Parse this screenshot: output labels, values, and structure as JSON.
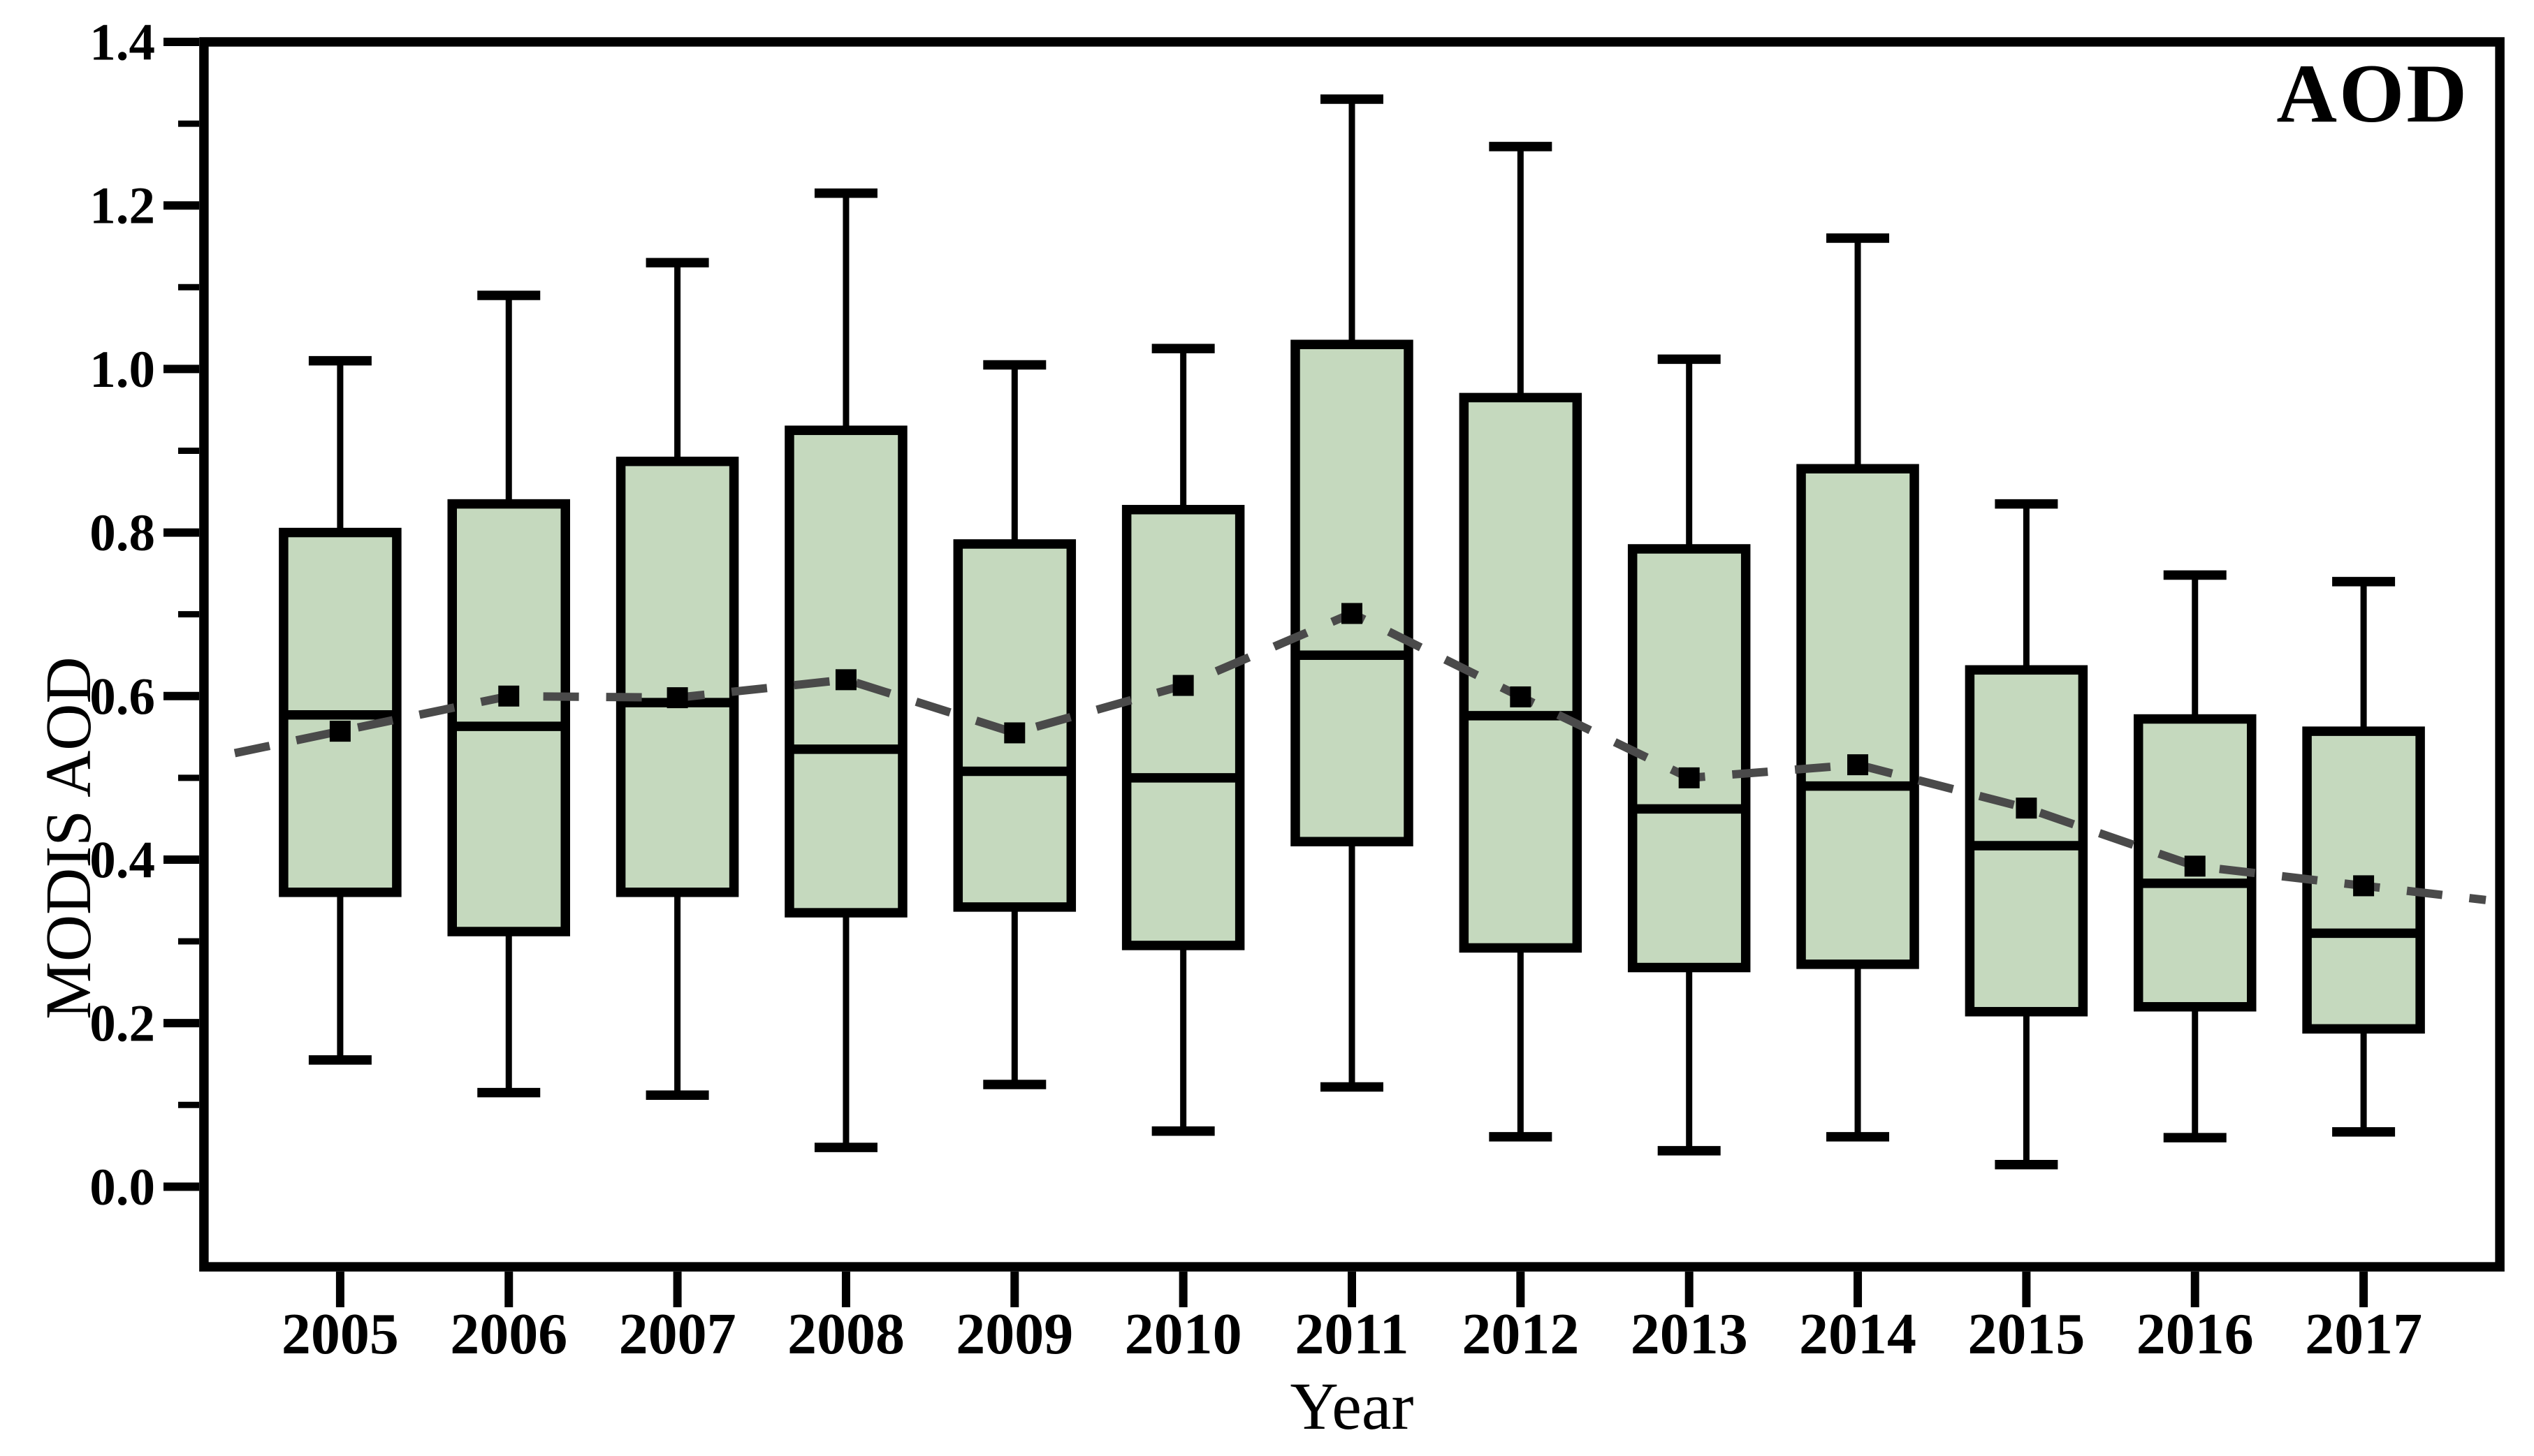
{
  "chart_data": {
    "type": "box",
    "title": "AOD",
    "xlabel": "Year",
    "ylabel": "MODIS AOD",
    "categories": [
      "2005",
      "2006",
      "2007",
      "2008",
      "2009",
      "2010",
      "2011",
      "2012",
      "2013",
      "2014",
      "2015",
      "2016",
      "2017"
    ],
    "y_axis": {
      "min": -0.098,
      "max": 1.4,
      "major_tick_labels": [
        "0.0",
        "0.2",
        "0.4",
        "0.6",
        "0.8",
        "1.0",
        "1.2",
        "1.4"
      ],
      "minor_ticks": [
        0.1,
        0.3,
        0.5,
        0.7,
        0.9,
        1.1,
        1.3
      ]
    },
    "grid": false,
    "legend_position": "none",
    "mean_trend_line": true,
    "series": [
      {
        "year": "2005",
        "whisker_low": 0.155,
        "q1": 0.36,
        "median": 0.577,
        "q3": 0.8,
        "whisker_high": 1.01,
        "mean": 0.557
      },
      {
        "year": "2006",
        "whisker_low": 0.115,
        "q1": 0.312,
        "median": 0.563,
        "q3": 0.835,
        "whisker_high": 1.09,
        "mean": 0.6
      },
      {
        "year": "2007",
        "whisker_low": 0.112,
        "q1": 0.36,
        "median": 0.592,
        "q3": 0.887,
        "whisker_high": 1.13,
        "mean": 0.598
      },
      {
        "year": "2008",
        "whisker_low": 0.048,
        "q1": 0.335,
        "median": 0.535,
        "q3": 0.925,
        "whisker_high": 1.215,
        "mean": 0.62
      },
      {
        "year": "2009",
        "whisker_low": 0.125,
        "q1": 0.342,
        "median": 0.508,
        "q3": 0.786,
        "whisker_high": 1.005,
        "mean": 0.555
      },
      {
        "year": "2010",
        "whisker_low": 0.068,
        "q1": 0.295,
        "median": 0.5,
        "q3": 0.828,
        "whisker_high": 1.025,
        "mean": 0.613
      },
      {
        "year": "2011",
        "whisker_low": 0.122,
        "q1": 0.422,
        "median": 0.65,
        "q3": 1.03,
        "whisker_high": 1.33,
        "mean": 0.701
      },
      {
        "year": "2012",
        "whisker_low": 0.061,
        "q1": 0.292,
        "median": 0.576,
        "q3": 0.965,
        "whisker_high": 1.272,
        "mean": 0.599
      },
      {
        "year": "2013",
        "whisker_low": 0.044,
        "q1": 0.268,
        "median": 0.462,
        "q3": 0.78,
        "whisker_high": 1.012,
        "mean": 0.5
      },
      {
        "year": "2014",
        "whisker_low": 0.061,
        "q1": 0.272,
        "median": 0.49,
        "q3": 0.878,
        "whisker_high": 1.16,
        "mean": 0.516
      },
      {
        "year": "2015",
        "whisker_low": 0.027,
        "q1": 0.214,
        "median": 0.417,
        "q3": 0.632,
        "whisker_high": 0.835,
        "mean": 0.463
      },
      {
        "year": "2016",
        "whisker_low": 0.06,
        "q1": 0.22,
        "median": 0.371,
        "q3": 0.572,
        "whisker_high": 0.748,
        "mean": 0.392
      },
      {
        "year": "2017",
        "whisker_low": 0.067,
        "q1": 0.193,
        "median": 0.31,
        "q3": 0.557,
        "whisker_high": 0.74,
        "mean": 0.368
      }
    ]
  },
  "style": {
    "box_fill": "#c5d9be",
    "box_border": "#000000",
    "median_color": "#000000",
    "whisker_color": "#000000",
    "mean_marker_color": "#000000",
    "trend_dash_color": "#4a4a4a",
    "frame_color": "#000000",
    "background": "#ffffff",
    "text_color": "#000000"
  }
}
